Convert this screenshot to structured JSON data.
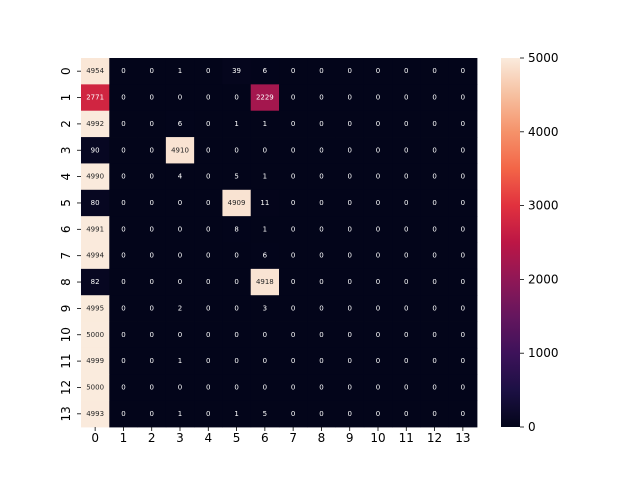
{
  "chart_data": {
    "type": "heatmap",
    "title": "",
    "xlabel": "",
    "ylabel": "",
    "x_tick_labels": [
      "0",
      "1",
      "2",
      "3",
      "4",
      "5",
      "6",
      "7",
      "8",
      "9",
      "10",
      "11",
      "12",
      "13"
    ],
    "y_tick_labels": [
      "0",
      "1",
      "2",
      "3",
      "4",
      "5",
      "6",
      "7",
      "8",
      "9",
      "10",
      "11",
      "12",
      "13"
    ],
    "matrix": [
      [
        4954,
        0,
        0,
        1,
        0,
        39,
        6,
        0,
        0,
        0,
        0,
        0,
        0,
        0
      ],
      [
        2771,
        0,
        0,
        0,
        0,
        0,
        2229,
        0,
        0,
        0,
        0,
        0,
        0,
        0
      ],
      [
        4992,
        0,
        0,
        6,
        0,
        1,
        1,
        0,
        0,
        0,
        0,
        0,
        0,
        0
      ],
      [
        90,
        0,
        0,
        4910,
        0,
        0,
        0,
        0,
        0,
        0,
        0,
        0,
        0,
        0
      ],
      [
        4990,
        0,
        0,
        4,
        0,
        5,
        1,
        0,
        0,
        0,
        0,
        0,
        0,
        0
      ],
      [
        80,
        0,
        0,
        0,
        0,
        4909,
        11,
        0,
        0,
        0,
        0,
        0,
        0,
        0
      ],
      [
        4991,
        0,
        0,
        0,
        0,
        8,
        1,
        0,
        0,
        0,
        0,
        0,
        0,
        0
      ],
      [
        4994,
        0,
        0,
        0,
        0,
        0,
        6,
        0,
        0,
        0,
        0,
        0,
        0,
        0
      ],
      [
        82,
        0,
        0,
        0,
        0,
        0,
        4918,
        0,
        0,
        0,
        0,
        0,
        0,
        0
      ],
      [
        4995,
        0,
        0,
        2,
        0,
        0,
        3,
        0,
        0,
        0,
        0,
        0,
        0,
        0
      ],
      [
        5000,
        0,
        0,
        0,
        0,
        0,
        0,
        0,
        0,
        0,
        0,
        0,
        0,
        0
      ],
      [
        4999,
        0,
        0,
        1,
        0,
        0,
        0,
        0,
        0,
        0,
        0,
        0,
        0,
        0
      ],
      [
        5000,
        0,
        0,
        0,
        0,
        0,
        0,
        0,
        0,
        0,
        0,
        0,
        0,
        0
      ],
      [
        4993,
        0,
        0,
        1,
        0,
        1,
        5,
        0,
        0,
        0,
        0,
        0,
        0,
        0
      ]
    ],
    "colorbar": {
      "min": 0,
      "max": 5000,
      "ticks": [
        0,
        1000,
        2000,
        3000,
        4000,
        5000
      ],
      "colormap": "rocket",
      "low_color": "#03051a",
      "high_color": "#faebdd"
    },
    "annotations_shown": true
  }
}
